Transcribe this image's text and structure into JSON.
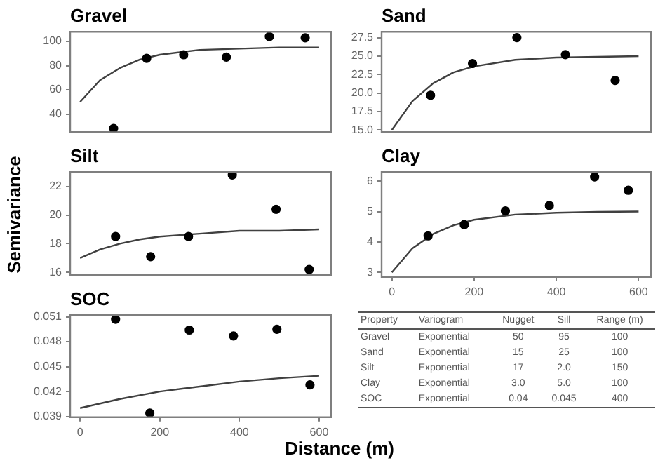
{
  "chart_data": [
    {
      "type": "scatter",
      "title": "Gravel",
      "xlim": [
        -25,
        630
      ],
      "xticks": [
        0,
        200,
        400,
        600
      ],
      "ylim": [
        25,
        108
      ],
      "yticks": [
        40,
        60,
        80,
        100
      ],
      "tick_labels": "y",
      "series": [
        {
          "type": "scatter",
          "marker": "circle",
          "color": "#000000",
          "x": [
            84,
            167,
            260,
            367,
            475,
            565
          ],
          "values": [
            28,
            86,
            89,
            87,
            104,
            103
          ]
        },
        {
          "type": "line",
          "marker": "none",
          "color": "#404040",
          "x": [
            0,
            50,
            100,
            150,
            200,
            300,
            400,
            500,
            600
          ],
          "values": [
            50,
            68,
            78,
            85,
            89,
            93,
            94,
            95,
            95
          ]
        }
      ]
    },
    {
      "type": "scatter",
      "title": "Sand",
      "xlim": [
        -25,
        630
      ],
      "xticks": [
        0,
        200,
        400,
        600
      ],
      "ylim": [
        14.7,
        28.3
      ],
      "yticks": [
        {
          "value": 15,
          "label": "15.0"
        },
        {
          "value": 17.5,
          "label": "17.5"
        },
        {
          "value": 20,
          "label": "20.0"
        },
        {
          "value": 22.5,
          "label": "22.5"
        },
        {
          "value": 25,
          "label": "25.0"
        },
        {
          "value": 27.5,
          "label": "27.5"
        }
      ],
      "tick_labels": "y",
      "series": [
        {
          "type": "scatter",
          "marker": "circle",
          "color": "#000000",
          "x": [
            94,
            196,
            304,
            422,
            543
          ],
          "values": [
            19.7,
            24.0,
            27.5,
            25.2,
            21.7
          ]
        },
        {
          "type": "line",
          "marker": "none",
          "color": "#404040",
          "x": [
            0,
            50,
            100,
            150,
            200,
            300,
            400,
            500,
            600
          ],
          "values": [
            15,
            18.9,
            21.3,
            22.8,
            23.6,
            24.5,
            24.8,
            24.9,
            25
          ]
        }
      ]
    },
    {
      "type": "scatter",
      "title": "Silt",
      "ylabel": "Semivariance",
      "xlim": [
        -25,
        630
      ],
      "xticks": [
        0,
        200,
        400,
        600
      ],
      "ylim": [
        15.8,
        23.0
      ],
      "yticks": [
        16,
        18,
        20,
        22
      ],
      "tick_labels": "y",
      "series": [
        {
          "type": "scatter",
          "marker": "circle",
          "color": "#000000",
          "x": [
            89,
            177,
            272,
            382,
            492,
            575
          ],
          "values": [
            18.5,
            17.1,
            18.5,
            22.8,
            20.4,
            16.2
          ]
        },
        {
          "type": "line",
          "marker": "none",
          "color": "#404040",
          "x": [
            0,
            50,
            100,
            150,
            200,
            300,
            400,
            500,
            600
          ],
          "values": [
            17,
            17.6,
            18.0,
            18.3,
            18.5,
            18.7,
            18.9,
            18.9,
            19.0
          ]
        }
      ]
    },
    {
      "type": "scatter",
      "title": "Clay",
      "xlim": [
        -25,
        630
      ],
      "xticks": [
        0,
        200,
        400,
        600
      ],
      "ylim": [
        2.85,
        6.3
      ],
      "yticks": [
        3,
        4,
        5,
        6
      ],
      "series": [
        {
          "type": "scatter",
          "marker": "circle",
          "color": "#000000",
          "x": [
            88,
            176,
            276,
            383,
            493,
            575
          ],
          "values": [
            4.2,
            4.57,
            5.02,
            5.2,
            6.14,
            5.7
          ]
        },
        {
          "type": "line",
          "marker": "none",
          "color": "#404040",
          "x": [
            0,
            50,
            100,
            150,
            200,
            300,
            400,
            500,
            600
          ],
          "values": [
            3,
            3.79,
            4.26,
            4.55,
            4.73,
            4.9,
            4.96,
            4.99,
            5.0
          ]
        }
      ]
    },
    {
      "type": "scatter",
      "title": "SOC",
      "xlabel": "Distance (m)",
      "xlim": [
        -25,
        630
      ],
      "xticks": [
        0,
        200,
        400,
        600
      ],
      "ylim": [
        0.0389,
        0.0512
      ],
      "yticks": [
        0.039,
        0.042,
        0.045,
        0.048,
        0.051
      ],
      "series": [
        {
          "type": "scatter",
          "marker": "circle",
          "color": "#000000",
          "x": [
            89,
            175,
            274,
            385,
            494,
            577
          ],
          "values": [
            0.0507,
            0.0394,
            0.0494,
            0.0487,
            0.0495,
            0.0428
          ]
        },
        {
          "type": "line",
          "marker": "none",
          "color": "#404040",
          "x": [
            0,
            100,
            200,
            300,
            400,
            500,
            600
          ],
          "values": [
            0.04,
            0.0411,
            0.042,
            0.0426,
            0.0432,
            0.0436,
            0.0439
          ]
        }
      ]
    },
    {
      "type": "other",
      "categories": [
        "Property",
        "Variogram",
        "Nugget",
        "Sill",
        "Range (m)"
      ],
      "cell_labels": [
        [
          "Gravel",
          "Exponential",
          "50",
          "95",
          "100"
        ],
        [
          "Sand",
          "Exponential",
          "15",
          "25",
          "100"
        ],
        [
          "Silt",
          "Exponential",
          "17",
          "2.0",
          "150"
        ],
        [
          "Clay",
          "Exponential",
          "3.0",
          "5.0",
          "100"
        ],
        [
          "SOC",
          "Exponential",
          "0.04",
          "0.045",
          "400"
        ]
      ]
    }
  ]
}
